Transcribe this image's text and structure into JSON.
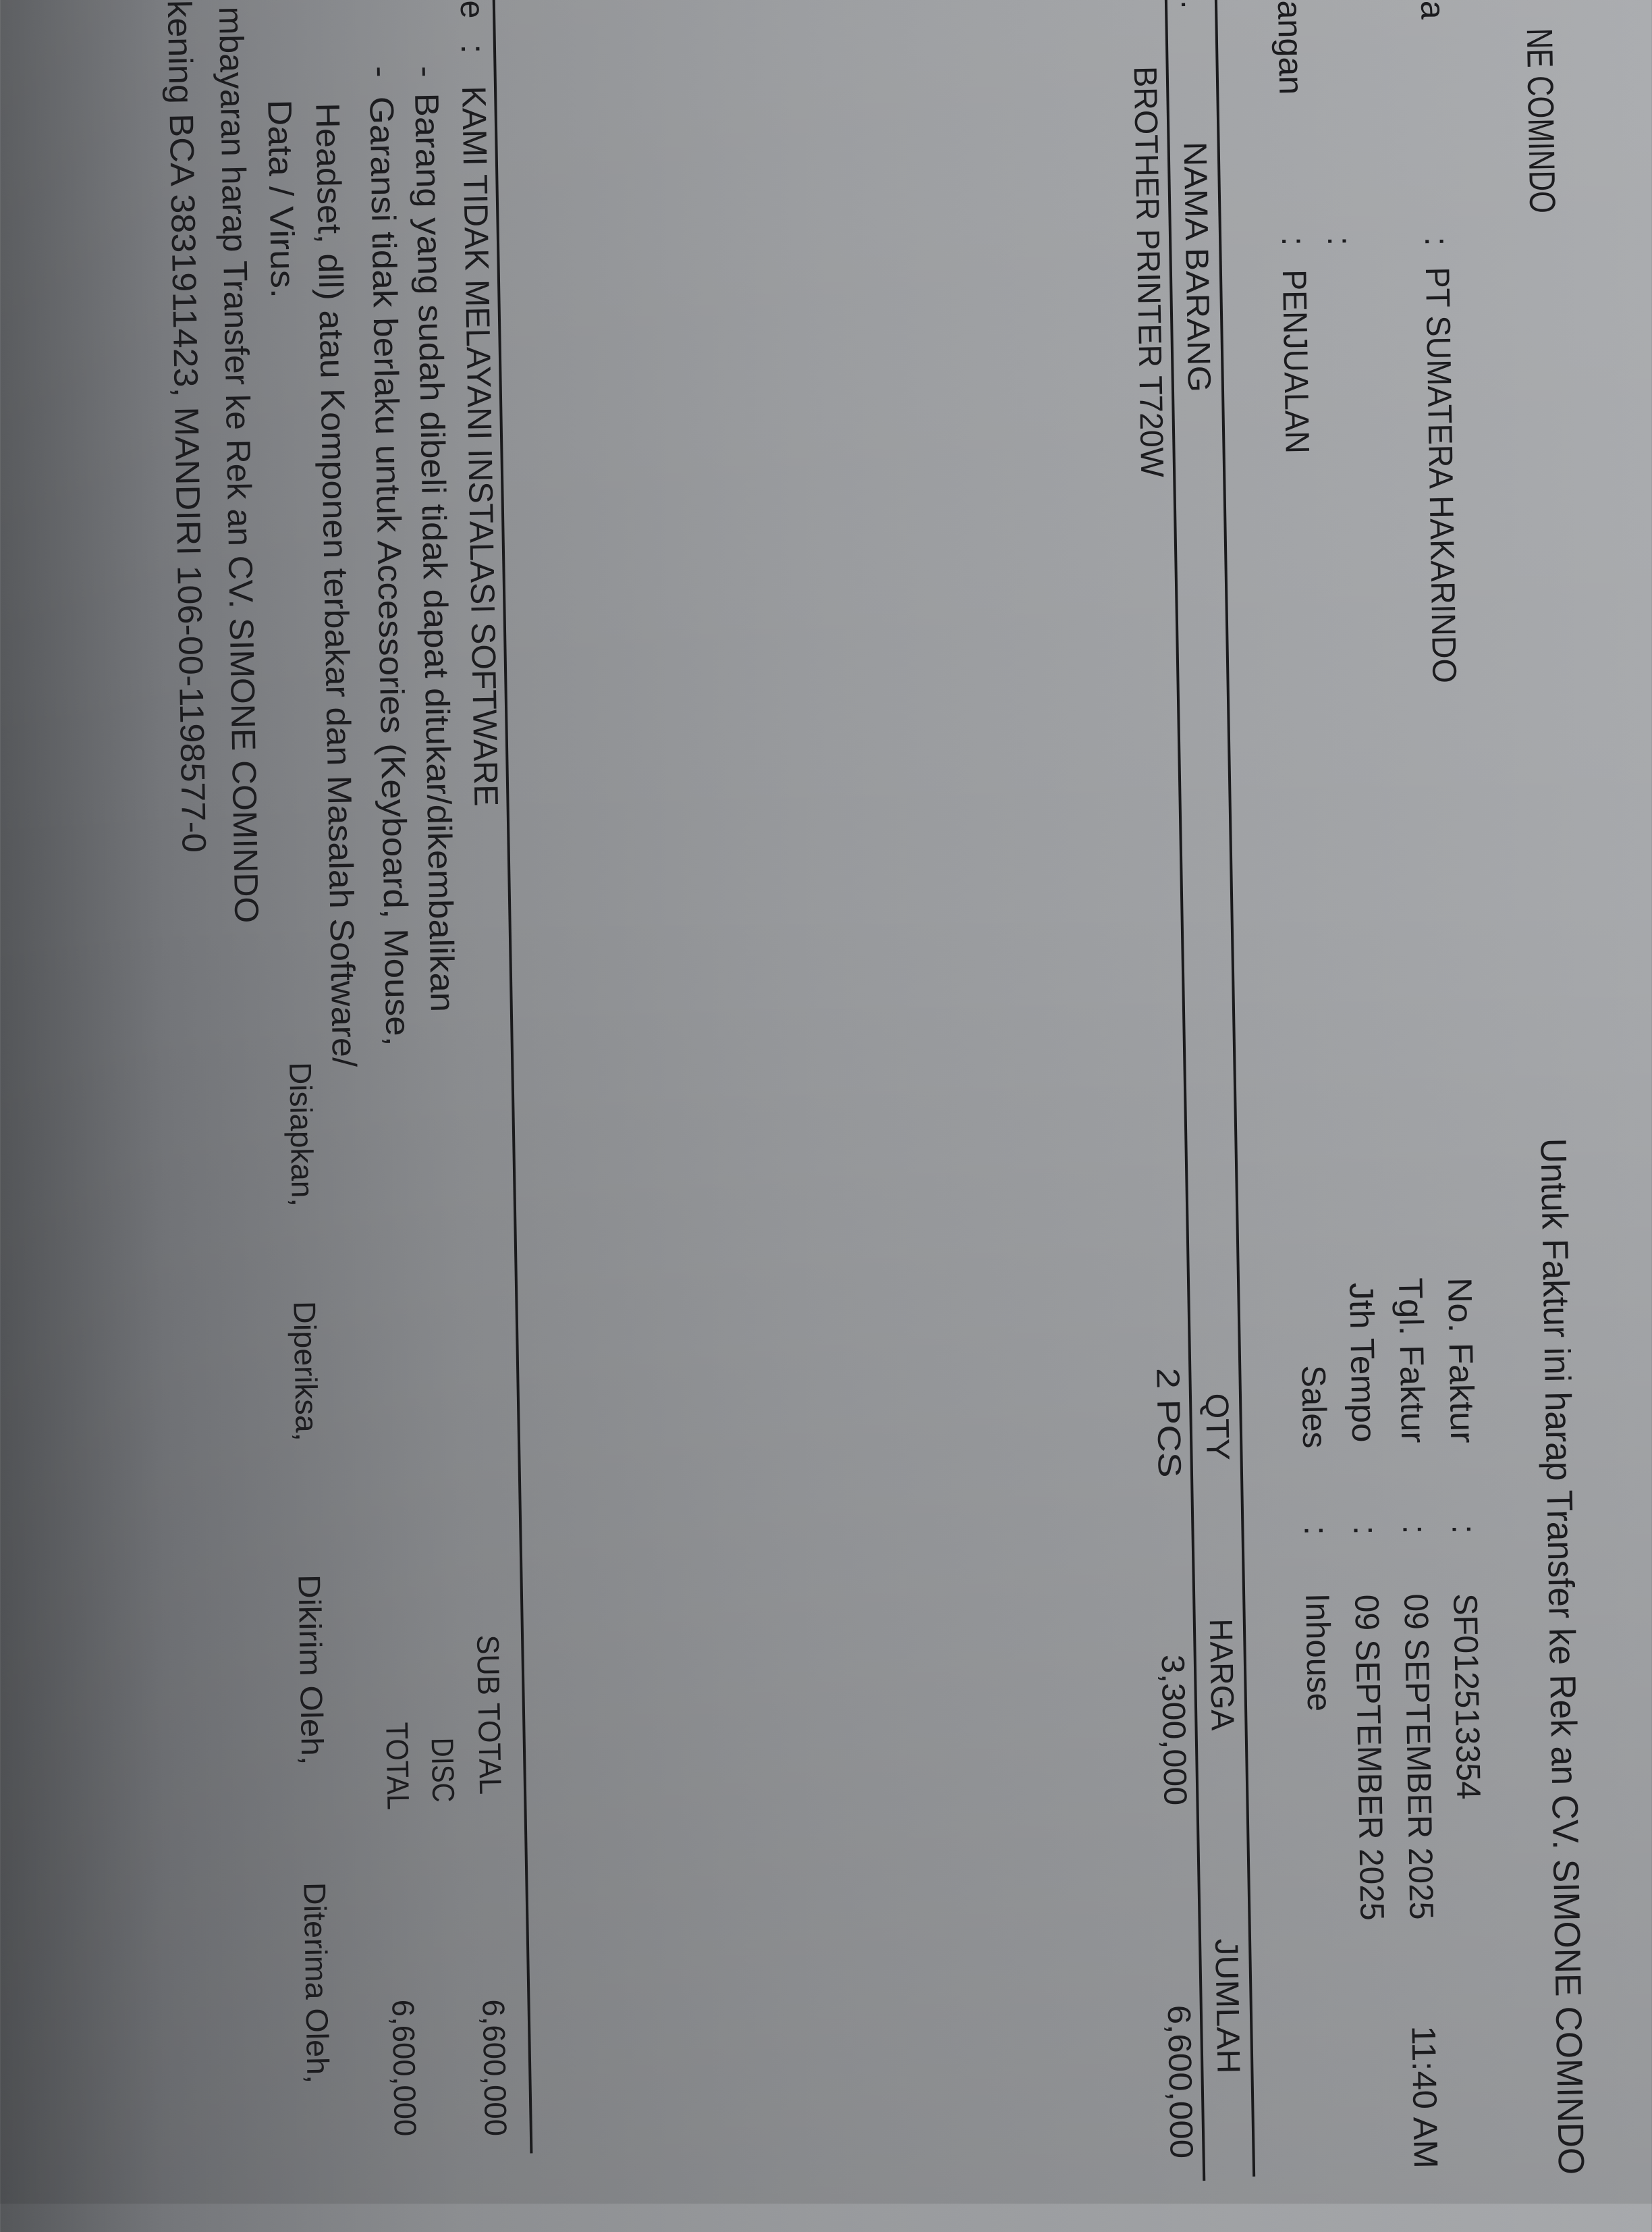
{
  "header": {
    "company_partial": "NE COMINDO",
    "payment_notice": "Untuk Faktur ini harap Transfer ke Rek an CV. SIMONE COMINDO"
  },
  "customer": {
    "rows": [
      {
        "label_partial": "a",
        "colon": ":",
        "value": "PT SUMATERA HAKARINDO"
      },
      {
        "label_partial": "",
        "colon": ":",
        "value": ""
      },
      {
        "label_partial": "angan",
        "colon": ":",
        "value": "PENJUALAN"
      }
    ]
  },
  "invoice_meta": {
    "rows": [
      {
        "label": "No. Faktur",
        "colon": ":",
        "value": "SF012513354"
      },
      {
        "label": "Tgl. Faktur",
        "colon": ":",
        "value": "09 SEPTEMBER 2025",
        "extra": "11:40 AM"
      },
      {
        "label": "Jth Tempo",
        "colon": ":",
        "value": "09 SEPTEMBER 2025"
      },
      {
        "label": "Sales",
        "colon": ":",
        "value": "Inhouse"
      }
    ]
  },
  "table": {
    "columns": [
      ".",
      "NAMA BARANG",
      "QTY",
      "HARGA",
      "JUMLAH"
    ],
    "rows": [
      {
        "nama_barang": "BROTHER PRINTER T720W",
        "qty": "2 PCS",
        "harga": "3,300,000",
        "jumlah": "6,600,000"
      }
    ]
  },
  "notes": {
    "label_partial": "e",
    "colon": ":",
    "lines": [
      "KAMI TIDAK MELAYANI INSTALASI SOFTWARE",
      "Barang yang sudah dibeli tidak dapat ditukar/dikembalikan",
      "Garansi tidak berlaku untuk Accessories (Keyboard, Mouse,",
      "Headset, dll) atau Komponen terbakar dan Masalah Software/",
      "Data / Virus."
    ],
    "bullet": "-",
    "payment_lines": [
      "mbayaran harap Transfer ke Rek an CV. SIMONE COMINDO",
      "kening BCA 3831911423, MANDIRI 106-00-1198577-0"
    ]
  },
  "totals": {
    "sub_total_label": "SUB TOTAL",
    "sub_total_value": "6,600,000",
    "disc_label": "DISC",
    "total_label": "TOTAL",
    "total_value": "6,600,000"
  },
  "signatures": [
    "Disiapkan,",
    "Diperiksa,",
    "Dikirim Oleh,",
    "Diterima Oleh,"
  ],
  "colors": {
    "paper": "#989a9d",
    "ink": "#1c1c1f"
  }
}
